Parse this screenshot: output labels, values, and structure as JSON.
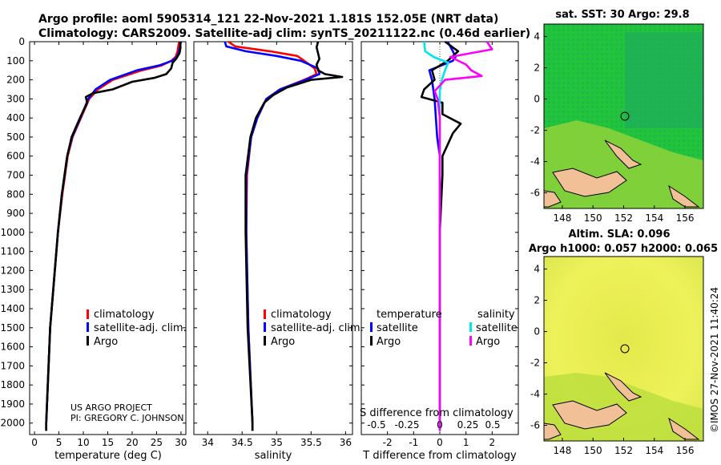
{
  "title": {
    "line1": "Argo profile: aoml 5905314_121 22-Nov-2021 1.181S 152.05E (NRT data)",
    "line2": "Climatology: CARS2009. Satellite-adj clim: synTS_20211122.nc (0.46d earlier)"
  },
  "colors": {
    "climatology": "#ff0000",
    "satellite": "#0000ff",
    "argo": "#000000",
    "s_satellite": "#00e5ee",
    "s_argo": "#ff00ff"
  },
  "depth_axis": {
    "label_ticks": [
      "0",
      "100",
      "200",
      "300",
      "400",
      "500",
      "600",
      "700",
      "800",
      "900",
      "1000",
      "1100",
      "1200",
      "1300",
      "1400",
      "1500",
      "1600",
      "1700",
      "1800",
      "1900",
      "2000"
    ]
  },
  "chart_data": [
    {
      "type": "line",
      "name": "temperature",
      "xlabel": "temperature (deg C)",
      "xlim": [
        -1,
        31
      ],
      "ylim": [
        2060,
        0
      ],
      "xticks": [
        0,
        5,
        10,
        15,
        20,
        25,
        30
      ],
      "xtick_labels": [
        "0",
        "5",
        "10",
        "15",
        "20",
        "25",
        "30"
      ],
      "legend": [
        "climatology",
        "satellite-adj. clim.",
        "Argo"
      ],
      "series": [
        {
          "name": "climatology",
          "depth": [
            0,
            50,
            80,
            100,
            125,
            150,
            200,
            250,
            300,
            400,
            500,
            600,
            800,
            1000,
            1500,
            2000,
            2040
          ],
          "values": [
            29.6,
            29.3,
            28.9,
            28.0,
            26.0,
            22.0,
            16.0,
            13.0,
            11.2,
            9.5,
            7.8,
            6.8,
            5.7,
            4.8,
            3.2,
            2.4,
            2.4
          ]
        },
        {
          "name": "satellite-adj. clim.",
          "depth": [
            0,
            50,
            80,
            100,
            125,
            150,
            200,
            250,
            300,
            400,
            500,
            600,
            800,
            1000,
            1500,
            2000,
            2040
          ],
          "values": [
            30.0,
            29.6,
            29.2,
            28.2,
            25.5,
            21.0,
            15.5,
            12.5,
            11.0,
            9.4,
            7.7,
            6.7,
            5.6,
            4.8,
            3.2,
            2.4,
            2.4
          ]
        },
        {
          "name": "Argo",
          "depth": [
            0,
            30,
            60,
            90,
            110,
            140,
            170,
            190,
            210,
            250,
            270,
            290,
            320,
            400,
            500,
            600,
            800,
            1000,
            1500,
            2000,
            2040
          ],
          "values": [
            29.8,
            29.9,
            29.7,
            29.0,
            28.3,
            28.0,
            27.0,
            24.5,
            20.0,
            16.0,
            12.0,
            10.5,
            10.8,
            9.3,
            7.6,
            6.7,
            5.6,
            4.8,
            3.2,
            2.4,
            2.4
          ]
        }
      ]
    },
    {
      "type": "line",
      "name": "salinity",
      "xlabel": "salinity",
      "xlim": [
        33.8,
        36.1
      ],
      "ylim": [
        2060,
        0
      ],
      "xticks": [
        34,
        34.5,
        35,
        35.5,
        36
      ],
      "xtick_labels": [
        "34",
        "34.5",
        "35",
        "35.5",
        "36"
      ],
      "legend": [
        "climatology",
        "satellite-adj. clim.",
        "Argo"
      ],
      "series": [
        {
          "name": "climatology",
          "depth": [
            0,
            25,
            50,
            75,
            100,
            140,
            170,
            200,
            250,
            300,
            400,
            500,
            700,
            1000,
            1500,
            2000,
            2040
          ],
          "values": [
            34.3,
            34.4,
            34.9,
            35.3,
            35.4,
            35.55,
            35.58,
            35.4,
            35.05,
            34.85,
            34.72,
            34.63,
            34.57,
            34.56,
            34.59,
            34.65,
            34.65
          ]
        },
        {
          "name": "satellite-adj. clim.",
          "depth": [
            0,
            25,
            50,
            75,
            100,
            140,
            170,
            200,
            250,
            300,
            400,
            500,
            700,
            1000,
            1500,
            2000,
            2040
          ],
          "values": [
            34.25,
            34.27,
            34.55,
            35.0,
            35.35,
            35.6,
            35.62,
            35.42,
            35.05,
            34.85,
            34.72,
            34.63,
            34.56,
            34.56,
            34.59,
            34.65,
            34.65
          ]
        },
        {
          "name": "Argo",
          "depth": [
            0,
            30,
            60,
            90,
            120,
            150,
            170,
            185,
            200,
            240,
            280,
            320,
            400,
            500,
            700,
            1000,
            1500,
            2000,
            2040
          ],
          "values": [
            35.6,
            35.58,
            35.6,
            35.62,
            35.58,
            35.6,
            35.7,
            35.95,
            35.5,
            35.15,
            34.95,
            34.82,
            34.7,
            34.62,
            34.55,
            34.55,
            34.58,
            34.65,
            34.65
          ]
        }
      ]
    },
    {
      "type": "line",
      "name": "difference",
      "xlabel": "T difference from climatology",
      "xlim": [
        -3,
        3
      ],
      "ylim": [
        2060,
        0
      ],
      "xticks": [
        -2,
        -1,
        0,
        1,
        2
      ],
      "xtick_labels": [
        "-2",
        "-1",
        "0",
        "1",
        "2"
      ],
      "top_xlabel": "S difference from climatology",
      "top_ticks": [
        "-0.5",
        "-0.25",
        "0",
        "0.25",
        "0.5"
      ],
      "legend_headers": {
        "t": "temperature",
        "s": "salinity"
      },
      "legend_t": [
        "satellite",
        "Argo"
      ],
      "legend_s": [
        "satellite",
        "Argo"
      ],
      "series": [
        {
          "name": "T satellite",
          "depth": [
            0,
            50,
            80,
            100,
            150,
            200,
            300,
            500,
            600,
            700,
            800,
            1000,
            1500,
            2000,
            2040
          ],
          "values": [
            0.3,
            0.5,
            0.6,
            0.5,
            -0.4,
            -0.3,
            -0.2,
            -0.1,
            0,
            0,
            0,
            0,
            0,
            0,
            0
          ]
        },
        {
          "name": "T Argo",
          "depth": [
            0,
            50,
            100,
            150,
            200,
            250,
            290,
            320,
            380,
            430,
            480,
            540,
            600,
            700,
            1000,
            1500,
            2000,
            2040
          ],
          "values": [
            0.2,
            0.7,
            0.3,
            -0.3,
            -0.2,
            -0.6,
            -0.7,
            0.1,
            0.1,
            0.8,
            0.5,
            0.3,
            0.1,
            0.1,
            0,
            0,
            0,
            0
          ]
        },
        {
          "name": "S satellite",
          "depth": [
            0,
            50,
            80,
            110,
            150,
            200,
            260,
            300,
            400,
            500,
            700,
            1000,
            1500,
            2000,
            2040
          ],
          "values": [
            -0.15,
            -0.14,
            -0.06,
            0.08,
            0.05,
            0.02,
            0.0,
            0.0,
            0.0,
            0.0,
            0.0,
            0.0,
            0.0,
            0.0,
            0.0
          ]
        },
        {
          "name": "S Argo",
          "depth": [
            0,
            40,
            80,
            120,
            150,
            180,
            200,
            230,
            260,
            300,
            400,
            500,
            700,
            1000,
            1500,
            2000,
            2040
          ],
          "values": [
            0.45,
            0.5,
            0.1,
            0.25,
            0.3,
            0.4,
            0.05,
            0.0,
            -0.05,
            -0.02,
            0.0,
            0.0,
            0.0,
            0.0,
            0.0,
            0.0,
            0.0
          ]
        }
      ]
    },
    {
      "type": "heatmap",
      "name": "sat-sst",
      "title": "sat. SST: 30 Argo: 29.8",
      "xlim": [
        146.8,
        157.2
      ],
      "ylim": [
        -7,
        4.8
      ],
      "xticks": [
        "148",
        "150",
        "152",
        "154",
        "156"
      ],
      "yticks": [
        "4",
        "2",
        "0",
        "-2",
        "-4",
        "-6"
      ],
      "argo_position": {
        "lon": 152.05,
        "lat": -1.181
      }
    },
    {
      "type": "heatmap",
      "name": "altim-sla",
      "title_line1": "Altim. SLA: 0.096",
      "title_line2": "Argo h1000: 0.057 h2000: 0.065",
      "xlim": [
        146.8,
        157.2
      ],
      "ylim": [
        -7,
        4.8
      ],
      "xticks": [
        "148",
        "150",
        "152",
        "154",
        "156"
      ],
      "yticks": [
        "4",
        "2",
        "0",
        "-2",
        "-4",
        "-6"
      ],
      "argo_position": {
        "lon": 152.05,
        "lat": -1.181
      }
    }
  ],
  "notes": {
    "project": "US ARGO PROJECT",
    "pi": "PI: GREGORY C. JOHNSON",
    "imos_stamp": "©IMOS 27-Nov-2021 11:40:24"
  }
}
